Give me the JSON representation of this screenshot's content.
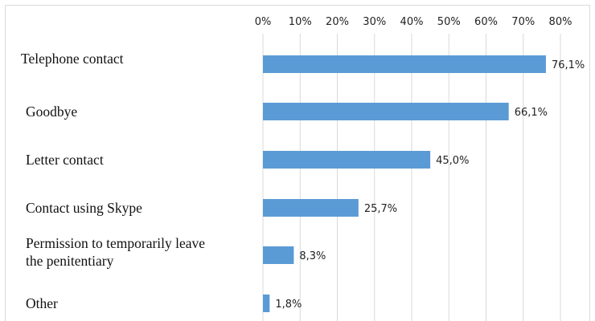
{
  "chart_data": {
    "type": "bar",
    "orientation": "horizontal",
    "categories": [
      [
        "Telephone contact"
      ],
      [
        "Goodbye"
      ],
      [
        "Letter contact"
      ],
      [
        "Contact using Skype"
      ],
      [
        "Permission to temporarily leave",
        "the penitentiary"
      ],
      [
        "Other"
      ]
    ],
    "values": [
      76.1,
      66.1,
      45.0,
      25.7,
      8.3,
      1.8
    ],
    "value_labels": [
      "76,1%",
      "66,1%",
      "45,0%",
      "25,7%",
      "8,3%",
      "1,8%"
    ],
    "x_ticks": [
      "0%",
      "10%",
      "20%",
      "30%",
      "40%",
      "50%",
      "60%",
      "70%",
      "80%"
    ],
    "xlim": [
      0,
      80
    ],
    "x_tick_values": [
      0,
      10,
      20,
      30,
      40,
      50,
      60,
      70,
      80
    ],
    "axis_position": "top",
    "grid": true,
    "legend": "none",
    "colors": {
      "bar": "#5b9bd5"
    }
  }
}
